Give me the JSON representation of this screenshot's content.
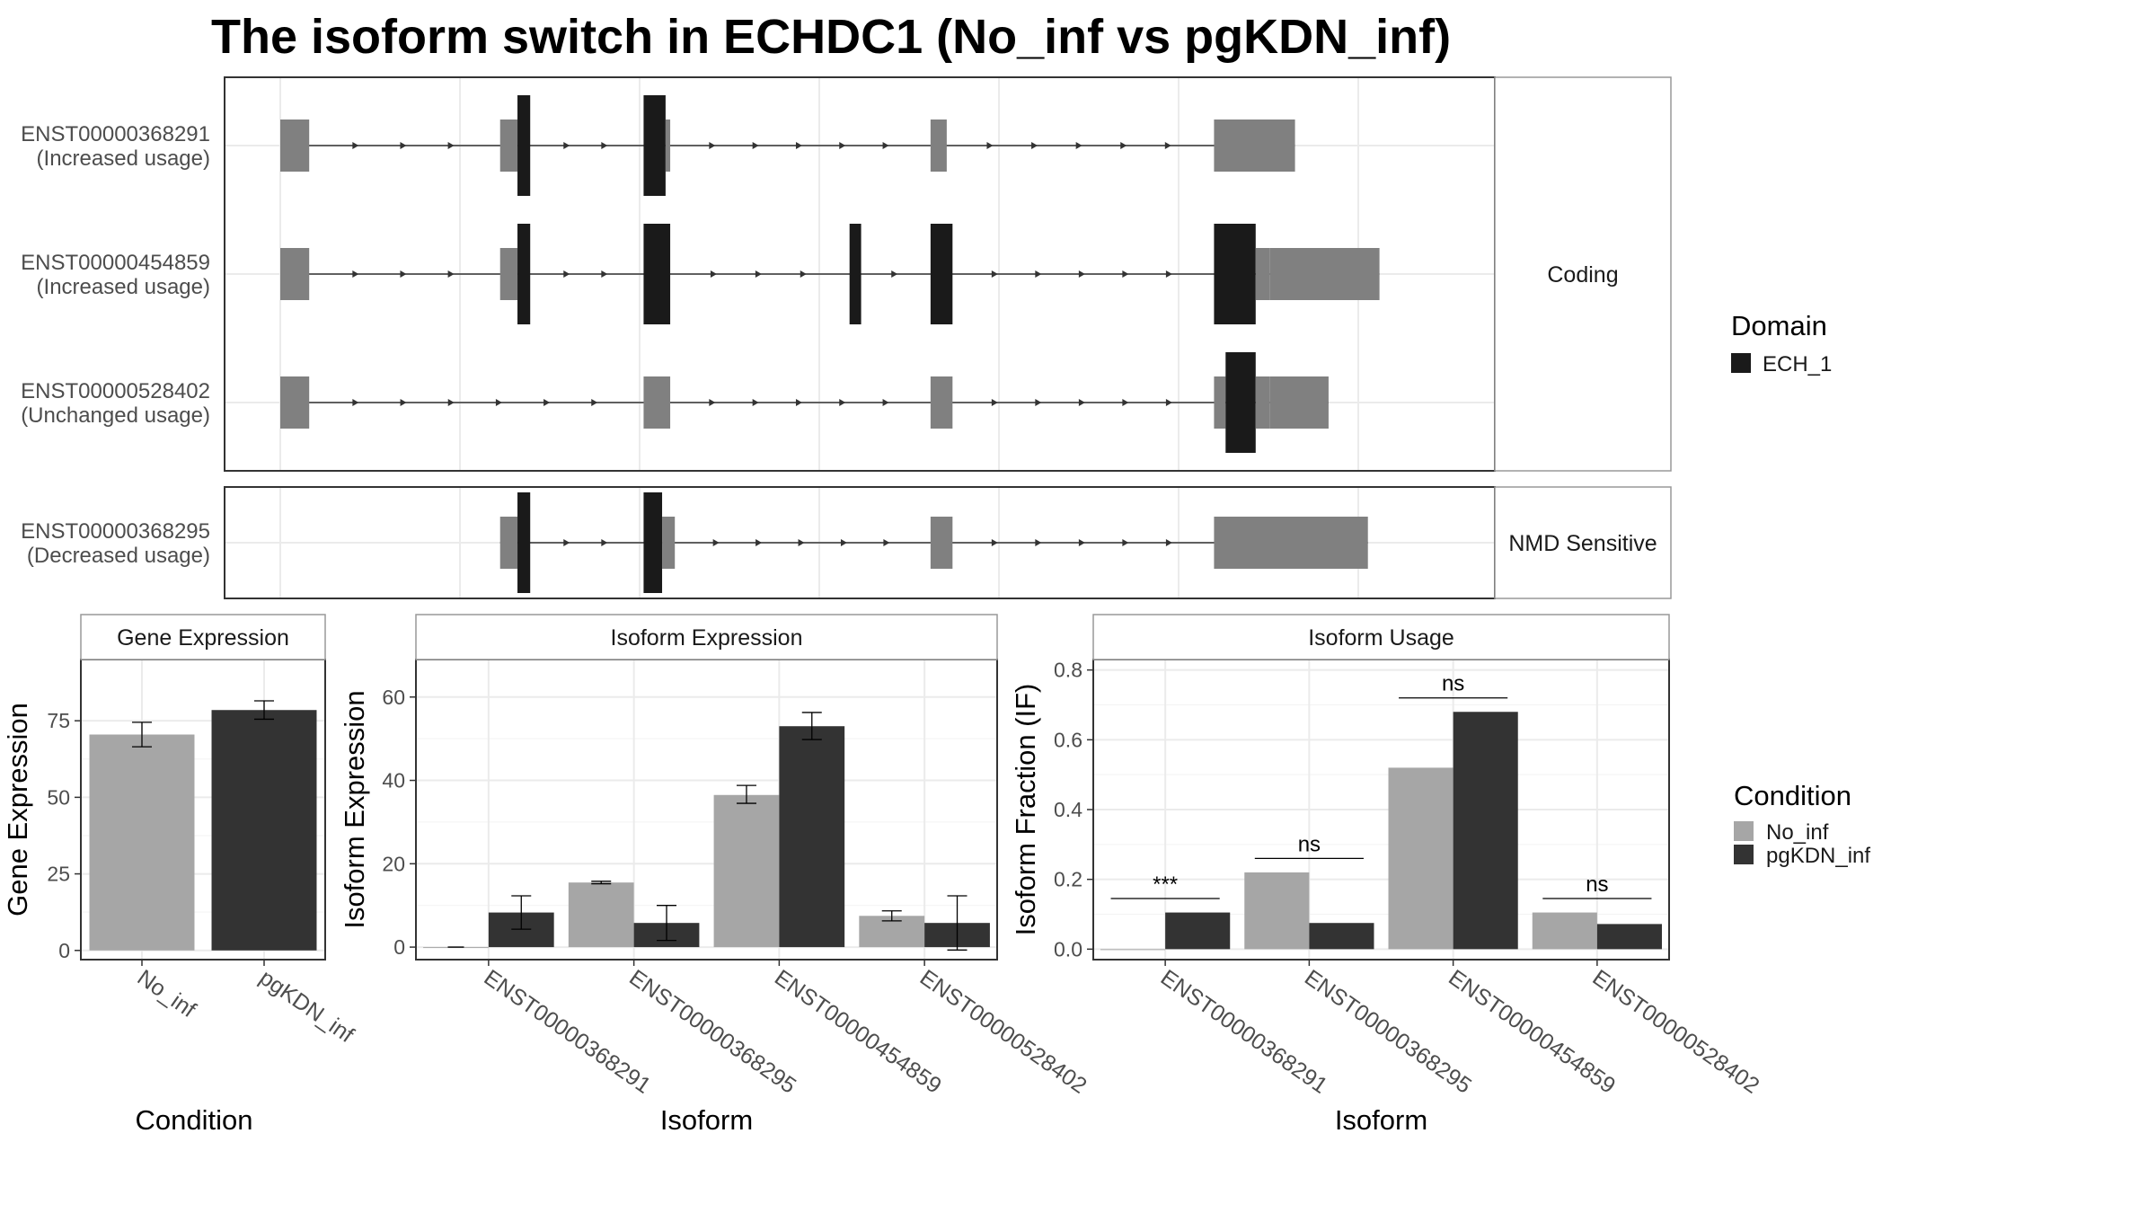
{
  "title": "The isoform switch in ECHDC1 (No_inf vs pgKDN_inf)",
  "colors": {
    "utr": "#808080",
    "domain": "#1a1a1a",
    "no_inf": "#a6a6a6",
    "pgkdn_inf": "#333333",
    "grid": "#ebebeb",
    "strip": "#ffffff"
  },
  "transcript_panels": [
    {
      "facet": "Coding",
      "transcripts": [
        {
          "id": "ENST00000368291",
          "usage": "(Increased usage)",
          "exons": [
            [
              0.0,
              0.025,
              "u"
            ],
            [
              0.19,
              0.205,
              "u"
            ],
            [
              0.205,
              0.216,
              "d"
            ],
            [
              0.314,
              0.333,
              "d"
            ],
            [
              0.333,
              0.337,
              "u"
            ],
            [
              0.562,
              0.576,
              "u"
            ],
            [
              0.807,
              0.877,
              "u"
            ]
          ]
        },
        {
          "id": "ENST00000454859",
          "usage": "(Increased usage)",
          "exons": [
            [
              0.0,
              0.025,
              "u"
            ],
            [
              0.19,
              0.205,
              "u"
            ],
            [
              0.205,
              0.216,
              "d"
            ],
            [
              0.314,
              0.337,
              "d"
            ],
            [
              0.492,
              0.502,
              "d"
            ],
            [
              0.562,
              0.581,
              "d"
            ],
            [
              0.807,
              0.843,
              "d"
            ],
            [
              0.843,
              0.855,
              "u"
            ],
            [
              0.855,
              0.95,
              "u"
            ]
          ]
        },
        {
          "id": "ENST00000528402",
          "usage": "(Unchanged usage)",
          "exons": [
            [
              0.0,
              0.025,
              "u"
            ],
            [
              0.314,
              0.337,
              "u"
            ],
            [
              0.562,
              0.581,
              "u"
            ],
            [
              0.807,
              0.817,
              "u"
            ],
            [
              0.817,
              0.843,
              "d"
            ],
            [
              0.843,
              0.855,
              "u"
            ],
            [
              0.855,
              0.906,
              "u"
            ]
          ]
        }
      ]
    },
    {
      "facet": "NMD Sensitive",
      "transcripts": [
        {
          "id": "ENST00000368295",
          "usage": "(Decreased usage)",
          "exons": [
            [
              0.19,
              0.205,
              "u"
            ],
            [
              0.205,
              0.216,
              "d"
            ],
            [
              0.314,
              0.33,
              "d"
            ],
            [
              0.33,
              0.341,
              "u"
            ],
            [
              0.562,
              0.566,
              "u"
            ],
            [
              0.566,
              0.581,
              "u"
            ],
            [
              0.807,
              0.94,
              "u"
            ]
          ]
        }
      ]
    }
  ],
  "domain_legend": {
    "title": "Domain",
    "items": [
      "ECH_1"
    ]
  },
  "condition_legend": {
    "title": "Condition",
    "items": [
      "No_inf",
      "pgKDN_inf"
    ]
  },
  "chart_data": [
    {
      "type": "bar",
      "title": "Gene Expression",
      "xlabel": "Condition",
      "ylabel": "Gene Expression",
      "categories": [
        "No_inf",
        "pgKDN_inf"
      ],
      "values": [
        70.5,
        78.5
      ],
      "errors": [
        [
          66.5,
          74.5
        ],
        [
          75.5,
          81.5
        ]
      ],
      "ylim": [
        -3,
        95
      ],
      "yticks": [
        0,
        25,
        50,
        75
      ]
    },
    {
      "type": "bar",
      "title": "Isoform Expression",
      "xlabel": "Isoform",
      "ylabel": "Isoform Expression",
      "categories": [
        "ENST00000368291",
        "ENST00000368295",
        "ENST00000454859",
        "ENST00000528402"
      ],
      "series": [
        {
          "name": "No_inf",
          "values": [
            0,
            15.5,
            36.5,
            7.5
          ],
          "errors": [
            [
              0,
              0
            ],
            [
              15.2,
              15.8
            ],
            [
              34.5,
              38.8
            ],
            [
              6.3,
              8.7
            ]
          ]
        },
        {
          "name": "pgKDN_inf",
          "values": [
            8.3,
            5.8,
            53,
            5.8
          ],
          "errors": [
            [
              4.3,
              12.3
            ],
            [
              1.6,
              10
            ],
            [
              49.8,
              56.3
            ],
            [
              -0.7,
              12.3
            ]
          ]
        }
      ],
      "ylim": [
        -3,
        69
      ],
      "yticks": [
        0,
        20,
        40,
        60
      ]
    },
    {
      "type": "bar",
      "title": "Isoform Usage",
      "xlabel": "Isoform",
      "ylabel": "Isoform Fraction (IF)",
      "categories": [
        "ENST00000368291",
        "ENST00000368295",
        "ENST00000454859",
        "ENST00000528402"
      ],
      "series": [
        {
          "name": "No_inf",
          "values": [
            0,
            0.22,
            0.52,
            0.105
          ]
        },
        {
          "name": "pgKDN_inf",
          "values": [
            0.105,
            0.075,
            0.68,
            0.072
          ]
        }
      ],
      "significance": [
        "***",
        "ns",
        "ns",
        "ns"
      ],
      "sig_y": [
        0.145,
        0.26,
        0.72,
        0.145
      ],
      "ylim": [
        -0.03,
        0.83
      ],
      "yticks": [
        0.0,
        0.2,
        0.4,
        0.6,
        0.8
      ]
    }
  ]
}
